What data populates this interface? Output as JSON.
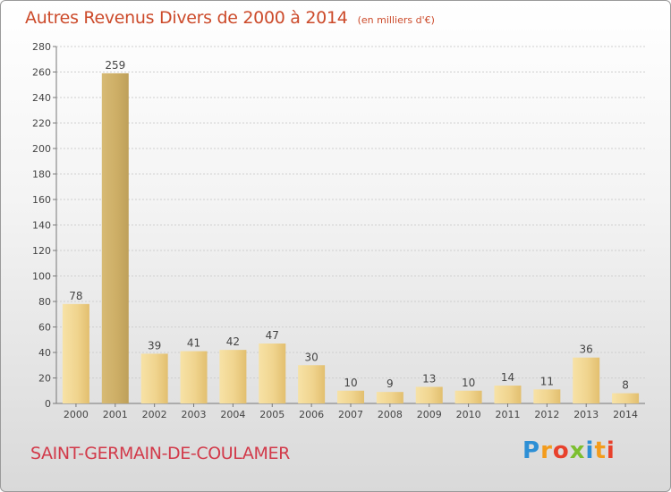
{
  "chart_data": {
    "type": "bar",
    "title": "Autres Revenus Divers de 2000 à 2014",
    "unit": "(en milliers d'€)",
    "categories": [
      "2000",
      "2001",
      "2002",
      "2003",
      "2004",
      "2005",
      "2006",
      "2007",
      "2008",
      "2009",
      "2010",
      "2011",
      "2012",
      "2013",
      "2014"
    ],
    "values": [
      78,
      259,
      39,
      41,
      42,
      47,
      30,
      10,
      9,
      13,
      10,
      14,
      11,
      36,
      8
    ],
    "ylim": [
      0,
      280
    ],
    "yticks": [
      0,
      20,
      40,
      60,
      80,
      100,
      120,
      140,
      160,
      180,
      200,
      220,
      240,
      260,
      280
    ],
    "grid": true,
    "bar_color": "#f0d48e"
  },
  "footer": {
    "place": "SAINT-GERMAIN-DE-COULAMER"
  },
  "logo": {
    "text": "Proxiti",
    "letters": [
      {
        "ch": "P",
        "color": "#2d8fd5"
      },
      {
        "ch": "r",
        "color": "#f39c1c"
      },
      {
        "ch": "o",
        "color": "#e8412c"
      },
      {
        "ch": "x",
        "color": "#7cbf2f"
      },
      {
        "ch": "i",
        "color": "#2d8fd5"
      },
      {
        "ch": "t",
        "color": "#f39c1c"
      },
      {
        "ch": "i",
        "color": "#e8412c"
      }
    ]
  }
}
